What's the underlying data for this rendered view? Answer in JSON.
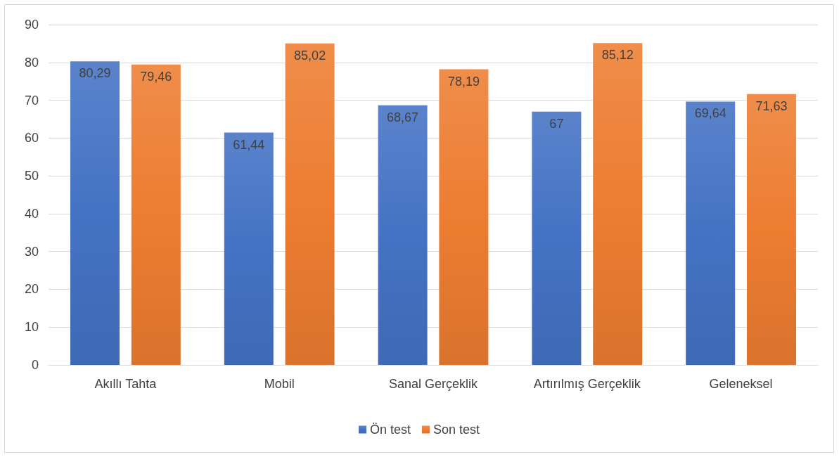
{
  "chart_data": {
    "type": "bar",
    "categories": [
      "Akıllı Tahta",
      "Mobil",
      "Sanal Gerçeklik",
      "Artırılmış Gerçeklik",
      "Geleneksel"
    ],
    "series": [
      {
        "name": "Ön test",
        "color": "#4472c4",
        "values": [
          80.29,
          61.44,
          68.67,
          67,
          69.64
        ],
        "value_labels": [
          "80,29",
          "61,44",
          "68,67",
          "67",
          "69,64"
        ]
      },
      {
        "name": "Son test",
        "color": "#ed7d31",
        "values": [
          79.46,
          85.02,
          78.19,
          85.12,
          71.63
        ],
        "value_labels": [
          "79,46",
          "85,02",
          "78,19",
          "85,12",
          "71,63"
        ]
      }
    ],
    "ylim": [
      0,
      90
    ],
    "yticks": [
      0,
      10,
      20,
      30,
      40,
      50,
      60,
      70,
      80,
      90
    ],
    "grid": "y",
    "legend": "bottom"
  }
}
